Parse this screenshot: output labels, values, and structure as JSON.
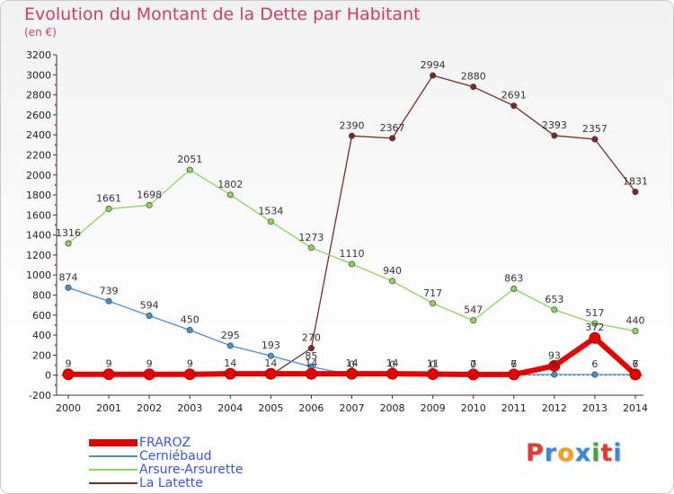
{
  "title": "Evolution du Montant de la Dette par Habitant",
  "unit": "(en €)",
  "logo_text": "Proxiti",
  "logo_colors": [
    "#e23c32",
    "#3a88d8",
    "#f0a020",
    "#3a88d8",
    "#43a83c",
    "#e23c32",
    "#3a88d8"
  ],
  "chart_data": {
    "type": "line",
    "title": "Evolution du Montant de la Dette par Habitant",
    "ylabel": "(en €)",
    "xlabel": "",
    "x": [
      2000,
      2001,
      2002,
      2003,
      2004,
      2005,
      2006,
      2007,
      2008,
      2009,
      2010,
      2011,
      2012,
      2013,
      2014
    ],
    "ylim": [
      -200,
      3200
    ],
    "yticks": [
      -200,
      0,
      200,
      400,
      600,
      800,
      1000,
      1200,
      1400,
      1600,
      1800,
      2000,
      2200,
      2400,
      2600,
      2800,
      3000,
      3200
    ],
    "grid": false,
    "legend_position": "bottom-left",
    "series": [
      {
        "name": "FRAROZ",
        "color": "#e60000",
        "values": [
          9,
          9,
          9,
          9,
          14,
          14,
          14,
          14,
          14,
          11,
          7,
          7,
          93,
          372,
          7
        ],
        "labels": [
          "9",
          "9",
          "9",
          "9",
          "14",
          "14",
          "14",
          "14",
          "14",
          "11",
          "7",
          "7",
          "93",
          "372",
          "7"
        ]
      },
      {
        "name": "Cerniébaud",
        "color": "#4a8fd0",
        "values": [
          874,
          739,
          594,
          450,
          295,
          193,
          85,
          0,
          0,
          0,
          0,
          6,
          6,
          6,
          6
        ],
        "labels": [
          "874",
          "739",
          "594",
          "450",
          "295",
          "193",
          "85",
          "0",
          "0",
          "0",
          "0",
          "6",
          "6",
          "6",
          "6"
        ]
      },
      {
        "name": "Arsure-Arsurette",
        "color": "#8cd45a",
        "values": [
          1316,
          1661,
          1698,
          2051,
          1802,
          1534,
          1273,
          1110,
          940,
          717,
          547,
          863,
          653,
          517,
          440
        ],
        "labels": [
          "1316",
          "1661",
          "1698",
          "2051",
          "1802",
          "1534",
          "1273",
          "1110",
          "940",
          "717",
          "547",
          "863",
          "653",
          "517",
          "440"
        ]
      },
      {
        "name": "La Latette",
        "color": "#7a2a2a",
        "values": [
          null,
          null,
          null,
          null,
          null,
          0,
          270,
          2390,
          2367,
          2994,
          2880,
          2691,
          2393,
          2357,
          1831
        ],
        "labels": [
          "",
          "",
          "",
          "",
          "",
          "",
          "270",
          "2390",
          "2367",
          "2994",
          "2880",
          "2691",
          "2393",
          "2357",
          "1831"
        ]
      }
    ]
  },
  "legend": [
    {
      "label": "FRAROZ",
      "color": "#e60000",
      "thick": true
    },
    {
      "label": "Cerniébaud",
      "color": "#4a8fd0",
      "thick": false
    },
    {
      "label": "Arsure-Arsurette",
      "color": "#8cd45a",
      "thick": false
    },
    {
      "label": "La Latette",
      "color": "#7a2a2a",
      "thick": false
    }
  ]
}
